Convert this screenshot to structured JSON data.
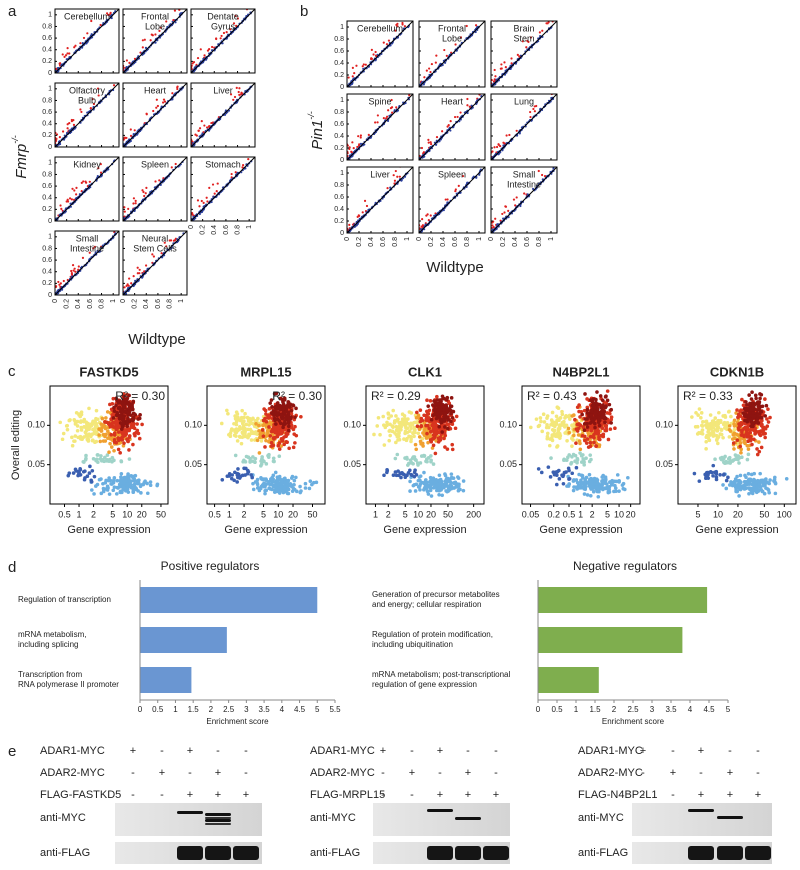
{
  "panel_labels": [
    "a",
    "b",
    "c",
    "d",
    "e"
  ],
  "panel_a": {
    "y_label": "Fmrp",
    "y_label_sup": "-/-",
    "x_label": "Wildtype",
    "lim": [
      0,
      1.1
    ],
    "ticks": [
      0,
      0.2,
      0.4,
      0.6,
      0.8,
      1
    ],
    "plots": [
      [
        "Cerebellum"
      ],
      [
        "Frontal",
        "Lobe"
      ],
      [
        "Dentate",
        "Gyrus"
      ],
      [
        "Olfactory",
        "Bulb"
      ],
      [
        "Heart"
      ],
      [
        "Liver"
      ],
      [
        "Kidney"
      ],
      [
        "Spleen"
      ],
      [
        "Stomach"
      ],
      [
        "Small",
        "Intestine"
      ],
      [
        "Neural",
        "Stem Cells"
      ]
    ]
  },
  "panel_b": {
    "y_label": "Pin1",
    "y_label_sup": "-/-",
    "x_label": "Wildtype",
    "lim": [
      0,
      1.1
    ],
    "ticks": [
      0,
      0.2,
      0.4,
      0.6,
      0.8,
      1
    ],
    "plots": [
      [
        "Cerebellum"
      ],
      [
        "Frontal",
        "Lobe"
      ],
      [
        "Brain",
        "Stem"
      ],
      [
        "Spine"
      ],
      [
        "Heart"
      ],
      [
        "Lung"
      ],
      [
        "Liver"
      ],
      [
        "Spleen"
      ],
      [
        "Small",
        "Intestine"
      ]
    ]
  },
  "panel_c": {
    "y_label": "Overall editing",
    "x_label": "Gene expression",
    "ylim": [
      0,
      0.15
    ],
    "yticks": [
      0.05,
      {
        "value": 0.1,
        "label": "0.10"
      }
    ],
    "plots": [
      {
        "title": "FASTKD5",
        "r2": "R² = 0.30",
        "r2_corner": "right",
        "xlim": [
          0.25,
          70
        ],
        "xticks": [
          0.5,
          1,
          2,
          5,
          10,
          20,
          50
        ]
      },
      {
        "title": "MRPL15",
        "r2": "R² = 0.30",
        "r2_corner": "right",
        "xlim": [
          0.35,
          90
        ],
        "xticks": [
          0.5,
          1,
          2,
          5,
          10,
          20,
          50
        ]
      },
      {
        "title": "CLK1",
        "r2": "R² = 0.29",
        "r2_corner": "left",
        "xlim": [
          0.6,
          350
        ],
        "xticks": [
          1,
          2,
          5,
          10,
          20,
          50,
          200
        ]
      },
      {
        "title": "N4BP2L1",
        "r2": "R² = 0.43",
        "r2_corner": "left",
        "xlim": [
          0.03,
          35
        ],
        "xticks": [
          0.05,
          0.2,
          0.5,
          1,
          2,
          5,
          10,
          20
        ]
      },
      {
        "title": "CDKN1B",
        "r2": "R² = 0.33",
        "r2_corner": "left",
        "xlim": [
          2.5,
          150
        ],
        "xticks": [
          5,
          10,
          20,
          50,
          100
        ]
      }
    ]
  },
  "panel_d": [
    {
      "type": "bar",
      "title": "Positive regulators",
      "x_label": "Enrichment score",
      "color": "#6a96d2",
      "categories": [
        [
          "Regulation of transcription"
        ],
        [
          "mRNA metabolism,",
          "including splicing"
        ],
        [
          "Transcription from",
          "RNA polymerase II promoter"
        ]
      ],
      "values": [
        5.0,
        2.45,
        1.45
      ],
      "xlim": [
        0,
        5.5
      ],
      "xticks": [
        0,
        0.5,
        1,
        1.5,
        2,
        2.5,
        3,
        3.5,
        4,
        4.5,
        5,
        5.5
      ]
    },
    {
      "type": "bar",
      "title": "Negative regulators",
      "x_label": "Enrichment score",
      "color": "#7fae4e",
      "categories": [
        [
          "Generation of precursor metabolites",
          "and energy; cellular respiration"
        ],
        [
          "Regulation of protein modification,",
          "including ubiquitination"
        ],
        [
          "mRNA metabolism; post-transcriptional",
          "regulation of gene expression"
        ]
      ],
      "values": [
        4.45,
        3.8,
        1.6
      ],
      "xlim": [
        0,
        5
      ],
      "xticks": [
        0,
        0.5,
        1,
        1.5,
        2,
        2.5,
        3,
        3.5,
        4,
        4.5,
        5
      ]
    }
  ],
  "panel_e": [
    {
      "rows": [
        {
          "label": "ADAR1-MYC",
          "marks": [
            "+",
            "-",
            "+",
            "-",
            "-"
          ]
        },
        {
          "label": "ADAR2-MYC",
          "marks": [
            "-",
            "+",
            "-",
            "+",
            "-"
          ]
        },
        {
          "label": "FLAG-FASTKD5",
          "marks": [
            "-",
            "-",
            "+",
            "+",
            "+"
          ]
        }
      ],
      "antibodies": [
        "anti-MYC",
        "anti-FLAG"
      ]
    },
    {
      "rows": [
        {
          "label": "ADAR1-MYC",
          "marks": [
            "+",
            "-",
            "+",
            "-",
            "-"
          ]
        },
        {
          "label": "ADAR2-MYC",
          "marks": [
            "-",
            "+",
            "-",
            "+",
            "-"
          ]
        },
        {
          "label": "FLAG-MRPL15",
          "marks": [
            "-",
            "-",
            "+",
            "+",
            "+"
          ]
        }
      ],
      "antibodies": [
        "anti-MYC",
        "anti-FLAG"
      ]
    },
    {
      "rows": [
        {
          "label": "ADAR1-MYC",
          "marks": [
            "+",
            "-",
            "+",
            "-",
            "-"
          ]
        },
        {
          "label": "ADAR2-MYC",
          "marks": [
            "-",
            "+",
            "-",
            "+",
            "-"
          ]
        },
        {
          "label": "FLAG-N4BP2L1",
          "marks": [
            "-",
            "-",
            "+",
            "+",
            "+"
          ]
        }
      ],
      "antibodies": [
        "anti-MYC",
        "anti-FLAG"
      ]
    }
  ]
}
